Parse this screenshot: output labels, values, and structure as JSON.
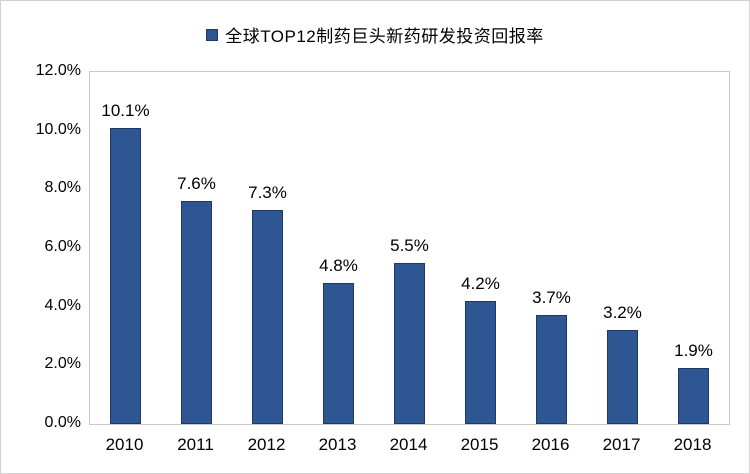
{
  "chart_data": {
    "type": "bar",
    "title": "全球TOP12制药巨头新药研发投资回报率",
    "legend": {
      "label": "全球TOP12制药巨头新药研发投资回报率",
      "position": "top",
      "marker_fill": "#2E5693",
      "marker_border": "#1F3864"
    },
    "categories": [
      "2010",
      "2011",
      "2012",
      "2013",
      "2014",
      "2015",
      "2016",
      "2017",
      "2018"
    ],
    "values": [
      10.1,
      7.6,
      7.3,
      4.8,
      5.5,
      4.2,
      3.7,
      3.2,
      1.9
    ],
    "data_labels": [
      "10.1%",
      "7.6%",
      "7.3%",
      "4.8%",
      "5.5%",
      "4.2%",
      "3.7%",
      "3.2%",
      "1.9%"
    ],
    "xlabel": "",
    "ylabel": "",
    "y_ticks": [
      "12.0%",
      "10.0%",
      "8.0%",
      "6.0%",
      "4.0%",
      "2.0%",
      "0.0%"
    ],
    "ylim": [
      0,
      12
    ],
    "grid": false,
    "bar_fill": "#2E5693",
    "bar_border": "#1F3864",
    "plot_border_color": "#C9C9C9"
  }
}
